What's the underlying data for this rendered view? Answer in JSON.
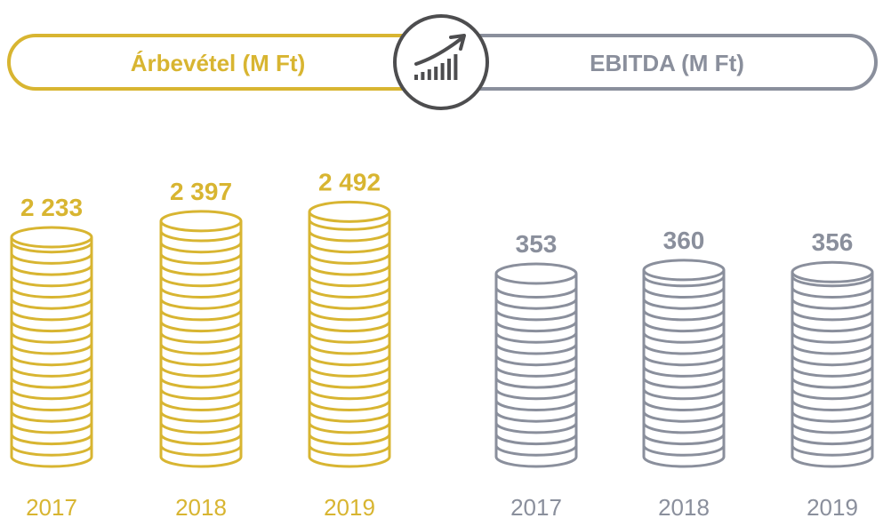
{
  "colors": {
    "revenue": "#d8b531",
    "ebitda": "#8a8f9c",
    "icon": "#4d4d4f",
    "background": "#ffffff"
  },
  "header": {
    "left_label": "Árbevétel (M Ft)",
    "right_label": "EBITDA (M Ft)",
    "center_icon": "growth-bar-chart-icon"
  },
  "chart_data": [
    {
      "type": "bar",
      "style": "coin-stack",
      "title": "Árbevétel (M Ft)",
      "categories": [
        "2017",
        "2018",
        "2019"
      ],
      "values": [
        2233,
        2397,
        2492
      ],
      "value_labels": [
        "2 233",
        "2 397",
        "2 492"
      ],
      "color": "#d8b531"
    },
    {
      "type": "bar",
      "style": "coin-stack",
      "title": "EBITDA (M Ft)",
      "categories": [
        "2017",
        "2018",
        "2019"
      ],
      "values": [
        353,
        360,
        356
      ],
      "value_labels": [
        "353",
        "360",
        "356"
      ],
      "color": "#8a8f9c"
    }
  ]
}
